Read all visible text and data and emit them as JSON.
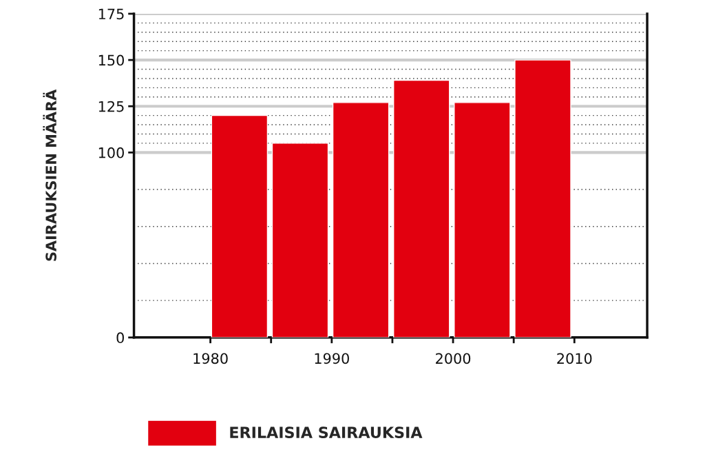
{
  "chart_data": {
    "type": "bar",
    "x": [
      1982.4,
      1987.4,
      1992.4,
      1997.4,
      2002.4,
      2007.4
    ],
    "series": [
      {
        "name": "ERILAISIA SAIRAUKSIA",
        "color": "#e2000f",
        "values": [
          120,
          105,
          127,
          139,
          127,
          150
        ]
      }
    ],
    "ylabel": "SAIRAUKSIEN MÄÄRÄ",
    "xlim": [
      1973.7,
      2016
    ],
    "xticks": [
      1980,
      {
        "value": 1985,
        "label": null
      },
      1990,
      {
        "value": 1995,
        "label": null
      },
      2000,
      {
        "value": 2005,
        "label": null
      },
      2010
    ],
    "ylim": [
      0,
      175
    ],
    "yticks": [
      0,
      100,
      125,
      150,
      175
    ],
    "grid": "y",
    "legend": "bottom left"
  }
}
